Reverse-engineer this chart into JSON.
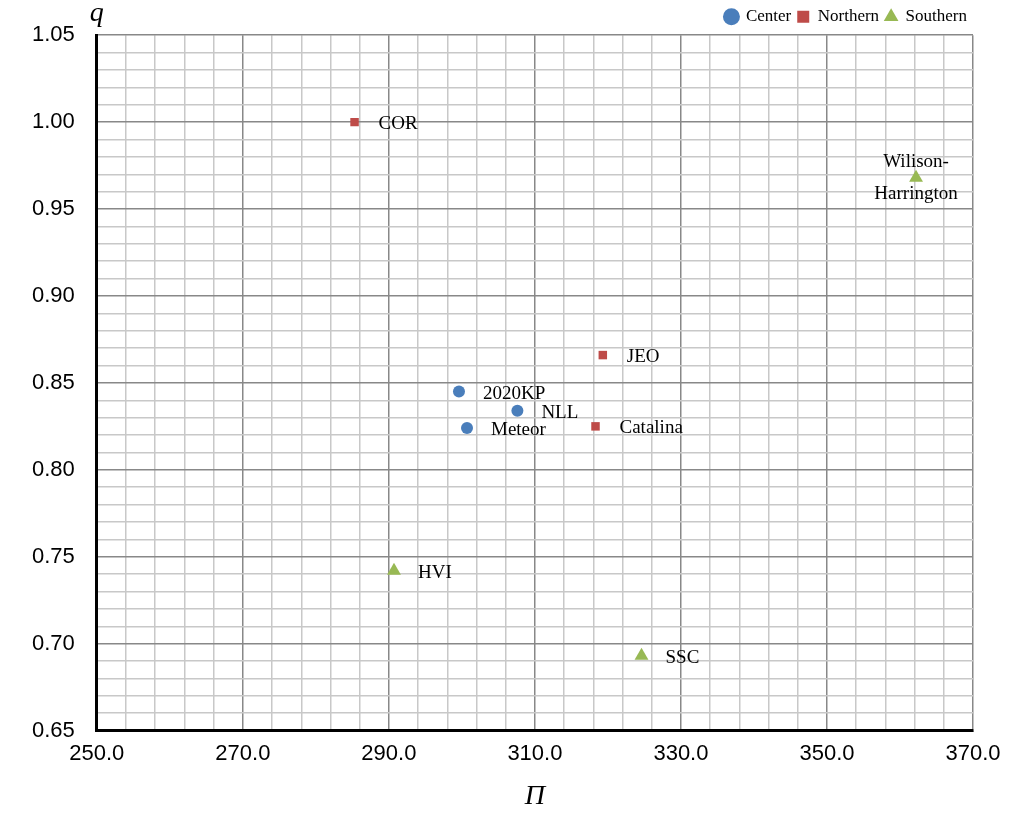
{
  "chart_data": {
    "type": "scatter",
    "xlabel": "Π",
    "ylabel": "q",
    "series": [
      {
        "name": "Center",
        "color": "#4a7ebb",
        "marker": "circle",
        "x": [
          299.6,
          307.6,
          300.7
        ],
        "values": [
          0.845,
          0.834,
          0.824
        ]
      },
      {
        "name": "Northern",
        "color": "#be4b48",
        "marker": "square",
        "x": [
          285.3,
          319.3,
          318.3
        ],
        "values": [
          1.0,
          0.866,
          0.825
        ]
      },
      {
        "name": "Southern",
        "color": "#98b954",
        "marker": "triangle",
        "x": [
          362.2,
          290.7,
          324.6
        ],
        "values": [
          0.968,
          0.742,
          0.693
        ]
      }
    ],
    "annotations": [
      {
        "text": "2020KP",
        "x": 299.6,
        "y": 0.845
      },
      {
        "text": "NLL",
        "x": 307.6,
        "y": 0.834
      },
      {
        "text": "Meteor",
        "x": 300.7,
        "y": 0.824
      },
      {
        "text": "COR",
        "x": 285.3,
        "y": 1.0
      },
      {
        "text": "JEO",
        "x": 319.3,
        "y": 0.866
      },
      {
        "text": "Catalina",
        "x": 318.3,
        "y": 0.825
      },
      {
        "text": "Wilison-Harrington",
        "x": 362.2,
        "y": 0.968
      },
      {
        "text": "HVI",
        "x": 290.7,
        "y": 0.742
      },
      {
        "text": "SSC",
        "x": 324.6,
        "y": 0.693
      }
    ],
    "xlim": [
      250,
      370
    ],
    "xticks": [
      {
        "value": 250,
        "label": "250.0"
      },
      {
        "value": 254,
        "label": null
      },
      {
        "value": 258,
        "label": null
      },
      {
        "value": 262,
        "label": null
      },
      {
        "value": 266,
        "label": null
      },
      {
        "value": 270,
        "label": "270.0"
      },
      {
        "value": 274,
        "label": null
      },
      {
        "value": 278,
        "label": null
      },
      {
        "value": 282,
        "label": null
      },
      {
        "value": 286,
        "label": null
      },
      {
        "value": 290,
        "label": "290.0"
      },
      {
        "value": 294,
        "label": null
      },
      {
        "value": 298,
        "label": null
      },
      {
        "value": 302,
        "label": null
      },
      {
        "value": 306,
        "label": null
      },
      {
        "value": 310,
        "label": "310.0"
      },
      {
        "value": 314,
        "label": null
      },
      {
        "value": 318,
        "label": null
      },
      {
        "value": 322,
        "label": null
      },
      {
        "value": 326,
        "label": null
      },
      {
        "value": 330,
        "label": "330.0"
      },
      {
        "value": 334,
        "label": null
      },
      {
        "value": 338,
        "label": null
      },
      {
        "value": 342,
        "label": null
      },
      {
        "value": 346,
        "label": null
      },
      {
        "value": 350,
        "label": "350.0"
      },
      {
        "value": 354,
        "label": null
      },
      {
        "value": 358,
        "label": null
      },
      {
        "value": 362,
        "label": null
      },
      {
        "value": 366,
        "label": null
      },
      {
        "value": 370,
        "label": "370.0"
      }
    ],
    "ylim": [
      0.65,
      1.05
    ],
    "yticks": [
      {
        "value": 0.65,
        "label": "0.65"
      },
      {
        "value": 0.66,
        "label": null
      },
      {
        "value": 0.67,
        "label": null
      },
      {
        "value": 0.68,
        "label": null
      },
      {
        "value": 0.69,
        "label": null
      },
      {
        "value": 0.7,
        "label": "0.70"
      },
      {
        "value": 0.71,
        "label": null
      },
      {
        "value": 0.72,
        "label": null
      },
      {
        "value": 0.73,
        "label": null
      },
      {
        "value": 0.74,
        "label": null
      },
      {
        "value": 0.75,
        "label": "0.75"
      },
      {
        "value": 0.76,
        "label": null
      },
      {
        "value": 0.77,
        "label": null
      },
      {
        "value": 0.78,
        "label": null
      },
      {
        "value": 0.79,
        "label": null
      },
      {
        "value": 0.8,
        "label": "0.80"
      },
      {
        "value": 0.81,
        "label": null
      },
      {
        "value": 0.82,
        "label": null
      },
      {
        "value": 0.83,
        "label": null
      },
      {
        "value": 0.84,
        "label": null
      },
      {
        "value": 0.85,
        "label": "0.85"
      },
      {
        "value": 0.86,
        "label": null
      },
      {
        "value": 0.87,
        "label": null
      },
      {
        "value": 0.88,
        "label": null
      },
      {
        "value": 0.89,
        "label": null
      },
      {
        "value": 0.9,
        "label": "0.90"
      },
      {
        "value": 0.91,
        "label": null
      },
      {
        "value": 0.92,
        "label": null
      },
      {
        "value": 0.93,
        "label": null
      },
      {
        "value": 0.94,
        "label": null
      },
      {
        "value": 0.95,
        "label": "0.95"
      },
      {
        "value": 0.96,
        "label": null
      },
      {
        "value": 0.97,
        "label": null
      },
      {
        "value": 0.98,
        "label": null
      },
      {
        "value": 0.99,
        "label": null
      },
      {
        "value": 1.0,
        "label": "1.00"
      },
      {
        "value": 1.01,
        "label": null
      },
      {
        "value": 1.02,
        "label": null
      },
      {
        "value": 1.03,
        "label": null
      },
      {
        "value": 1.04,
        "label": null
      },
      {
        "value": 1.05,
        "label": "1.05"
      }
    ],
    "grid": true,
    "legend": "top right"
  }
}
